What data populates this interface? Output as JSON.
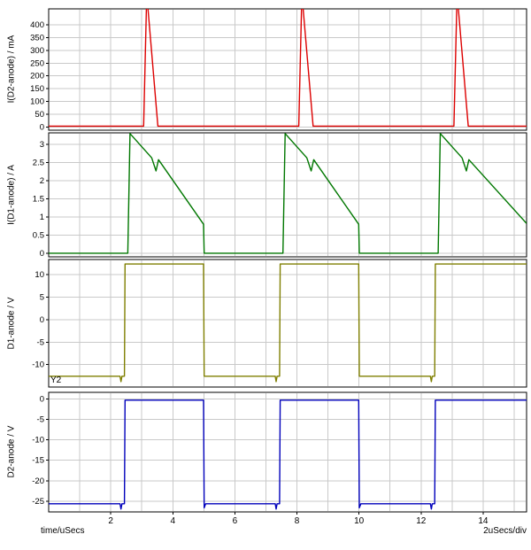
{
  "labels": {
    "y2": "Y2"
  },
  "colors": {
    "background": "#ffffff",
    "grid": "#c9c9c9",
    "axis": "#000000",
    "text": "#000000"
  },
  "x_axis": {
    "xlabel": "time/uSecs",
    "per_div": "2uSecs/div",
    "xlim": [
      0,
      15.4
    ],
    "grid_step": 1,
    "ticks": {
      "values": [
        2,
        4,
        6,
        8,
        10,
        12,
        14
      ],
      "labels": [
        "2",
        "4",
        "6",
        "8",
        "10",
        "12",
        "14"
      ]
    }
  },
  "chart_data": [
    {
      "type": "line",
      "ylabel": "I(D2-anode) / mA",
      "ylim": [
        -12,
        462
      ],
      "yticks": {
        "values": [
          0,
          50,
          100,
          150,
          200,
          250,
          300,
          350,
          400
        ],
        "labels": [
          "0",
          "50",
          "100",
          "150",
          "200",
          "250",
          "300",
          "350",
          "400"
        ]
      },
      "series": [
        {
          "name": "I(D2-anode)",
          "color": "#dd0000",
          "points": [
            [
              0,
              4
            ],
            [
              3.06,
              4
            ],
            [
              3.16,
              520
            ],
            [
              3.52,
              4
            ],
            [
              8.06,
              4
            ],
            [
              8.16,
              520
            ],
            [
              8.52,
              4
            ],
            [
              13.06,
              4
            ],
            [
              13.16,
              520
            ],
            [
              13.52,
              4
            ],
            [
              15.4,
              4
            ]
          ]
        }
      ]
    },
    {
      "type": "line",
      "ylabel": "I(D1-anode) / A",
      "ylim": [
        -0.1,
        3.32
      ],
      "yticks": {
        "values": [
          0,
          0.5,
          1,
          1.5,
          2,
          2.5,
          3
        ],
        "labels": [
          "0",
          "0.5",
          "1",
          "1.5",
          "2",
          "2.5",
          "3"
        ]
      },
      "series": [
        {
          "name": "I(D1-anode)",
          "color": "#007700",
          "points": [
            [
              0,
              0
            ],
            [
              2.55,
              0
            ],
            [
              2.62,
              3.3
            ],
            [
              3.32,
              2.63
            ],
            [
              3.46,
              2.27
            ],
            [
              3.54,
              2.58
            ],
            [
              4.99,
              0.8
            ],
            [
              5.01,
              0
            ],
            [
              7.55,
              0
            ],
            [
              7.62,
              3.3
            ],
            [
              8.32,
              2.63
            ],
            [
              8.46,
              2.27
            ],
            [
              8.54,
              2.58
            ],
            [
              9.99,
              0.8
            ],
            [
              10.01,
              0
            ],
            [
              12.55,
              0
            ],
            [
              12.62,
              3.3
            ],
            [
              13.32,
              2.63
            ],
            [
              13.46,
              2.27
            ],
            [
              13.54,
              2.58
            ],
            [
              15.4,
              0.82
            ]
          ]
        }
      ]
    },
    {
      "type": "line",
      "ylabel": "D1-anode / V",
      "ylim": [
        -15,
        13.4
      ],
      "yticks": {
        "values": [
          -10,
          -5,
          0,
          5,
          10
        ],
        "labels": [
          "-10",
          "-5",
          "0",
          "5",
          "10"
        ]
      },
      "series": [
        {
          "name": "D1-anode",
          "color": "#7f7f00",
          "points": [
            [
              0,
              -12.6
            ],
            [
              2.3,
              -12.6
            ],
            [
              2.33,
              -13.8
            ],
            [
              2.36,
              -12.6
            ],
            [
              2.44,
              -12.6
            ],
            [
              2.46,
              12.4
            ],
            [
              4.99,
              12.4
            ],
            [
              5.01,
              -12.6
            ],
            [
              7.3,
              -12.6
            ],
            [
              7.33,
              -13.8
            ],
            [
              7.36,
              -12.6
            ],
            [
              7.44,
              -12.6
            ],
            [
              7.46,
              12.4
            ],
            [
              9.99,
              12.4
            ],
            [
              10.01,
              -12.6
            ],
            [
              12.3,
              -12.6
            ],
            [
              12.33,
              -13.8
            ],
            [
              12.36,
              -12.6
            ],
            [
              12.44,
              -12.6
            ],
            [
              12.46,
              12.4
            ],
            [
              15.4,
              12.4
            ]
          ]
        }
      ]
    },
    {
      "type": "line",
      "ylabel": "D2-anode / V",
      "ylim": [
        -27.6,
        1.6
      ],
      "yticks": {
        "values": [
          0,
          -5,
          -10,
          -15,
          -20,
          -25
        ],
        "labels": [
          "0",
          "-5",
          "-10",
          "-15",
          "-20",
          "-25"
        ]
      },
      "series": [
        {
          "name": "D2-anode",
          "color": "#0000bb",
          "points": [
            [
              0,
              -25.6
            ],
            [
              2.3,
              -25.6
            ],
            [
              2.33,
              -26.9
            ],
            [
              2.36,
              -25.6
            ],
            [
              2.44,
              -25.6
            ],
            [
              2.46,
              -0.3
            ],
            [
              4.99,
              -0.3
            ],
            [
              5.01,
              -26.6
            ],
            [
              5.06,
              -25.6
            ],
            [
              7.3,
              -25.6
            ],
            [
              7.33,
              -26.9
            ],
            [
              7.36,
              -25.6
            ],
            [
              7.44,
              -25.6
            ],
            [
              7.46,
              -0.3
            ],
            [
              9.99,
              -0.3
            ],
            [
              10.01,
              -26.6
            ],
            [
              10.06,
              -25.6
            ],
            [
              12.3,
              -25.6
            ],
            [
              12.33,
              -26.9
            ],
            [
              12.36,
              -25.6
            ],
            [
              12.44,
              -25.6
            ],
            [
              12.46,
              -0.3
            ],
            [
              15.4,
              -0.3
            ]
          ]
        }
      ]
    }
  ]
}
